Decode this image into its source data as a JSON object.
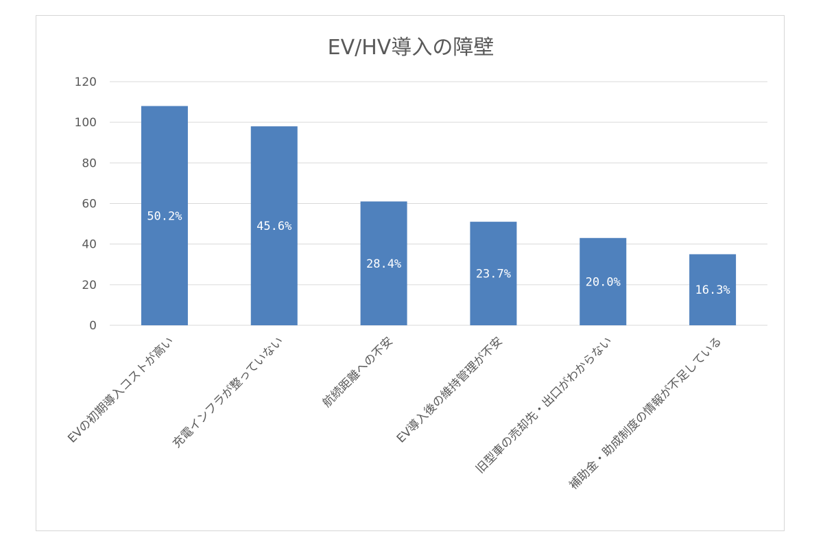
{
  "chart_data": {
    "type": "bar",
    "title": "EV/HV導入の障壁",
    "categories": [
      "EVの初期導入コストが高い",
      "充電インフラが整っていない",
      "航続距離への不安",
      "EV導入後の維持管理が不安",
      "旧型車の売却先・出口がわからない",
      "補助金・助成制度の情報が不足している"
    ],
    "values": [
      108,
      98,
      61,
      51,
      43,
      35
    ],
    "data_labels": [
      "50.2%",
      "45.6%",
      "28.4%",
      "23.7%",
      "20.0%",
      "16.3%"
    ],
    "ylim": [
      0,
      120
    ],
    "yticks": [
      0,
      20,
      40,
      60,
      80,
      100,
      120
    ],
    "grid": true,
    "legend": "none",
    "bar_color": "#4f81bd"
  }
}
